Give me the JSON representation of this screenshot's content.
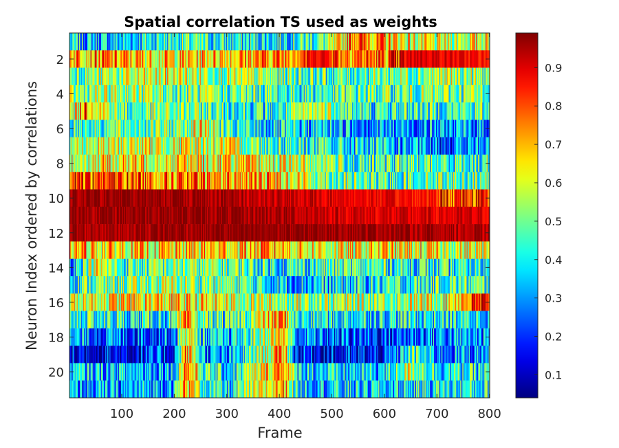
{
  "chart_data": {
    "type": "heatmap",
    "title": "Spatial correlation TS used as weights",
    "xlabel": "Frame",
    "ylabel": "Neuron Index ordered by correlations",
    "xlim": [
      0.5,
      800.5
    ],
    "ylim": [
      0.5,
      21.5
    ],
    "y_reversed": true,
    "n_rows": 21,
    "n_frames": 800,
    "x_ticks": [
      100,
      200,
      300,
      400,
      500,
      600,
      700,
      800
    ],
    "y_ticks": [
      2,
      4,
      6,
      8,
      10,
      12,
      14,
      16,
      18,
      20
    ],
    "colormap": "jet",
    "clim": [
      0.04,
      0.99
    ],
    "colorbar_ticks": [
      0.1,
      0.2,
      0.3,
      0.4,
      0.5,
      0.6,
      0.7,
      0.8,
      0.9
    ],
    "colorbar_placement": "right",
    "row_profiles": [
      {
        "row": 1,
        "points": [
          [
            1,
            0.35
          ],
          [
            100,
            0.35
          ],
          [
            200,
            0.45
          ],
          [
            300,
            0.4
          ],
          [
            400,
            0.4
          ],
          [
            500,
            0.5
          ],
          [
            540,
            0.8
          ],
          [
            600,
            0.7
          ],
          [
            700,
            0.55
          ],
          [
            800,
            0.65
          ]
        ]
      },
      {
        "row": 2,
        "points": [
          [
            1,
            0.75
          ],
          [
            100,
            0.7
          ],
          [
            200,
            0.65
          ],
          [
            300,
            0.7
          ],
          [
            400,
            0.75
          ],
          [
            480,
            0.9
          ],
          [
            520,
            0.8
          ],
          [
            600,
            0.75
          ],
          [
            660,
            0.92
          ],
          [
            800,
            0.85
          ]
        ]
      },
      {
        "row": 3,
        "points": [
          [
            1,
            0.5
          ],
          [
            100,
            0.55
          ],
          [
            200,
            0.6
          ],
          [
            300,
            0.55
          ],
          [
            400,
            0.5
          ],
          [
            500,
            0.45
          ],
          [
            600,
            0.5
          ],
          [
            700,
            0.55
          ],
          [
            800,
            0.5
          ]
        ]
      },
      {
        "row": 4,
        "points": [
          [
            1,
            0.5
          ],
          [
            100,
            0.55
          ],
          [
            200,
            0.5
          ],
          [
            300,
            0.48
          ],
          [
            400,
            0.45
          ],
          [
            500,
            0.45
          ],
          [
            600,
            0.48
          ],
          [
            700,
            0.5
          ],
          [
            800,
            0.5
          ]
        ]
      },
      {
        "row": 5,
        "points": [
          [
            1,
            0.5
          ],
          [
            30,
            0.8
          ],
          [
            100,
            0.45
          ],
          [
            200,
            0.5
          ],
          [
            300,
            0.45
          ],
          [
            400,
            0.4
          ],
          [
            480,
            0.6
          ],
          [
            560,
            0.4
          ],
          [
            650,
            0.45
          ],
          [
            800,
            0.45
          ]
        ]
      },
      {
        "row": 6,
        "points": [
          [
            1,
            0.45
          ],
          [
            100,
            0.48
          ],
          [
            200,
            0.5
          ],
          [
            260,
            0.65
          ],
          [
            300,
            0.4
          ],
          [
            400,
            0.35
          ],
          [
            500,
            0.35
          ],
          [
            600,
            0.3
          ],
          [
            700,
            0.3
          ],
          [
            800,
            0.3
          ]
        ]
      },
      {
        "row": 7,
        "points": [
          [
            1,
            0.55
          ],
          [
            100,
            0.6
          ],
          [
            200,
            0.6
          ],
          [
            300,
            0.6
          ],
          [
            400,
            0.45
          ],
          [
            500,
            0.4
          ],
          [
            600,
            0.35
          ],
          [
            700,
            0.25
          ],
          [
            800,
            0.3
          ]
        ]
      },
      {
        "row": 8,
        "points": [
          [
            1,
            0.6
          ],
          [
            100,
            0.65
          ],
          [
            200,
            0.65
          ],
          [
            300,
            0.65
          ],
          [
            400,
            0.6
          ],
          [
            500,
            0.55
          ],
          [
            550,
            0.4
          ],
          [
            600,
            0.45
          ],
          [
            700,
            0.45
          ],
          [
            800,
            0.45
          ]
        ]
      },
      {
        "row": 9,
        "points": [
          [
            1,
            0.85
          ],
          [
            100,
            0.8
          ],
          [
            200,
            0.75
          ],
          [
            300,
            0.72
          ],
          [
            400,
            0.7
          ],
          [
            500,
            0.5
          ],
          [
            600,
            0.45
          ],
          [
            700,
            0.5
          ],
          [
            800,
            0.5
          ]
        ]
      },
      {
        "row": 10,
        "points": [
          [
            1,
            0.96
          ],
          [
            100,
            0.97
          ],
          [
            200,
            0.97
          ],
          [
            300,
            0.95
          ],
          [
            400,
            0.92
          ],
          [
            500,
            0.9
          ],
          [
            600,
            0.88
          ],
          [
            700,
            0.85
          ],
          [
            800,
            0.85
          ]
        ]
      },
      {
        "row": 11,
        "points": [
          [
            1,
            0.97
          ],
          [
            100,
            0.97
          ],
          [
            200,
            0.98
          ],
          [
            300,
            0.96
          ],
          [
            400,
            0.95
          ],
          [
            500,
            0.92
          ],
          [
            600,
            0.9
          ],
          [
            700,
            0.9
          ],
          [
            800,
            0.9
          ]
        ]
      },
      {
        "row": 12,
        "points": [
          [
            1,
            0.95
          ],
          [
            100,
            0.96
          ],
          [
            200,
            0.97
          ],
          [
            300,
            0.97
          ],
          [
            400,
            0.97
          ],
          [
            500,
            0.98
          ],
          [
            600,
            0.97
          ],
          [
            700,
            0.95
          ],
          [
            800,
            0.93
          ]
        ]
      },
      {
        "row": 13,
        "points": [
          [
            1,
            0.7
          ],
          [
            100,
            0.65
          ],
          [
            200,
            0.65
          ],
          [
            300,
            0.68
          ],
          [
            400,
            0.7
          ],
          [
            500,
            0.6
          ],
          [
            600,
            0.65
          ],
          [
            700,
            0.6
          ],
          [
            800,
            0.6
          ]
        ]
      },
      {
        "row": 14,
        "points": [
          [
            1,
            0.35
          ],
          [
            50,
            0.6
          ],
          [
            100,
            0.45
          ],
          [
            200,
            0.5
          ],
          [
            300,
            0.5
          ],
          [
            400,
            0.4
          ],
          [
            500,
            0.45
          ],
          [
            600,
            0.45
          ],
          [
            700,
            0.4
          ],
          [
            800,
            0.4
          ]
        ]
      },
      {
        "row": 15,
        "points": [
          [
            1,
            0.45
          ],
          [
            100,
            0.5
          ],
          [
            200,
            0.55
          ],
          [
            300,
            0.5
          ],
          [
            400,
            0.35
          ],
          [
            500,
            0.35
          ],
          [
            600,
            0.4
          ],
          [
            700,
            0.45
          ],
          [
            800,
            0.45
          ]
        ]
      },
      {
        "row": 16,
        "points": [
          [
            1,
            0.6
          ],
          [
            100,
            0.65
          ],
          [
            200,
            0.65
          ],
          [
            300,
            0.6
          ],
          [
            400,
            0.55
          ],
          [
            500,
            0.55
          ],
          [
            600,
            0.55
          ],
          [
            700,
            0.6
          ],
          [
            790,
            0.85
          ],
          [
            800,
            0.6
          ]
        ]
      },
      {
        "row": 17,
        "points": [
          [
            1,
            0.45
          ],
          [
            100,
            0.4
          ],
          [
            200,
            0.4
          ],
          [
            220,
            0.7
          ],
          [
            250,
            0.5
          ],
          [
            300,
            0.4
          ],
          [
            410,
            0.75
          ],
          [
            430,
            0.4
          ],
          [
            500,
            0.4
          ],
          [
            600,
            0.4
          ],
          [
            800,
            0.4
          ]
        ]
      },
      {
        "row": 18,
        "points": [
          [
            1,
            0.3
          ],
          [
            100,
            0.25
          ],
          [
            200,
            0.28
          ],
          [
            220,
            0.65
          ],
          [
            260,
            0.35
          ],
          [
            300,
            0.3
          ],
          [
            410,
            0.7
          ],
          [
            430,
            0.3
          ],
          [
            500,
            0.25
          ],
          [
            600,
            0.22
          ],
          [
            700,
            0.3
          ],
          [
            800,
            0.3
          ]
        ]
      },
      {
        "row": 19,
        "points": [
          [
            1,
            0.15
          ],
          [
            100,
            0.15
          ],
          [
            200,
            0.2
          ],
          [
            220,
            0.75
          ],
          [
            260,
            0.3
          ],
          [
            300,
            0.25
          ],
          [
            410,
            0.75
          ],
          [
            430,
            0.2
          ],
          [
            500,
            0.15
          ],
          [
            600,
            0.15
          ],
          [
            650,
            0.45
          ],
          [
            700,
            0.3
          ],
          [
            800,
            0.3
          ]
        ]
      },
      {
        "row": 20,
        "points": [
          [
            1,
            0.35
          ],
          [
            100,
            0.35
          ],
          [
            200,
            0.35
          ],
          [
            220,
            0.8
          ],
          [
            260,
            0.45
          ],
          [
            300,
            0.35
          ],
          [
            410,
            0.8
          ],
          [
            430,
            0.4
          ],
          [
            500,
            0.35
          ],
          [
            600,
            0.35
          ],
          [
            650,
            0.6
          ],
          [
            700,
            0.4
          ],
          [
            800,
            0.4
          ]
        ]
      },
      {
        "row": 21,
        "points": [
          [
            1,
            0.3
          ],
          [
            100,
            0.3
          ],
          [
            200,
            0.35
          ],
          [
            220,
            0.75
          ],
          [
            260,
            0.45
          ],
          [
            300,
            0.35
          ],
          [
            410,
            0.75
          ],
          [
            430,
            0.4
          ],
          [
            500,
            0.35
          ],
          [
            600,
            0.35
          ],
          [
            700,
            0.4
          ],
          [
            800,
            0.4
          ]
        ]
      }
    ]
  }
}
